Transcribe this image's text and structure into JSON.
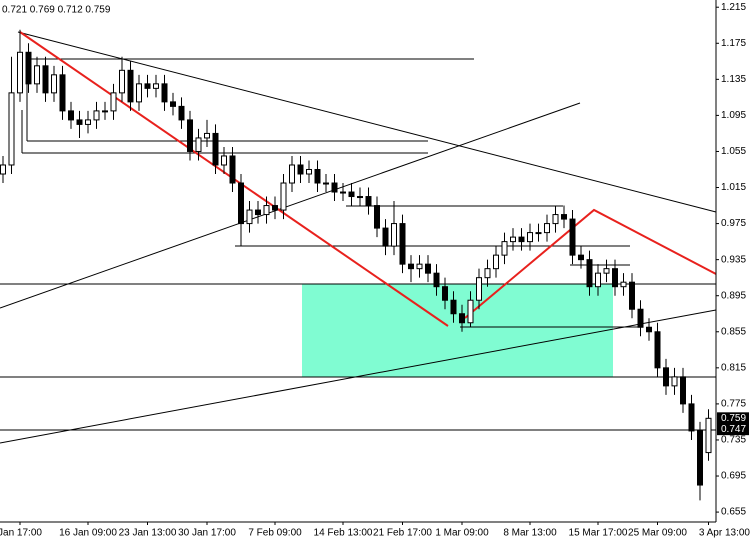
{
  "chart_data": {
    "type": "candlestick",
    "header": "0.721 0.769 0.712 0.759",
    "categories": [
      null,
      null,
      "Jan 17:00",
      null,
      null,
      null,
      null,
      null,
      null,
      null,
      "16 Jan 09:00",
      null,
      null,
      null,
      null,
      null,
      null,
      "23 Jan 13:00",
      null,
      null,
      null,
      null,
      null,
      null,
      "30 Jan 17:00",
      null,
      null,
      null,
      null,
      null,
      null,
      null,
      "7 Feb 09:00",
      null,
      null,
      null,
      null,
      null,
      null,
      null,
      "14 Feb 13:00",
      null,
      null,
      null,
      null,
      null,
      null,
      "21 Feb 17:00",
      null,
      null,
      null,
      null,
      null,
      null,
      "1 Mar 09:00",
      null,
      null,
      null,
      null,
      null,
      null,
      null,
      "8 Mar 13:00",
      null,
      null,
      null,
      null,
      null,
      null,
      null,
      "15 Mar 17:00",
      null,
      null,
      null,
      null,
      null,
      null,
      "25 Mar 09:00",
      null,
      null,
      null,
      null,
      null,
      "3 Apr 13:00"
    ],
    "open": [
      1.03,
      1.04,
      1.12,
      1.165,
      1.13,
      1.15,
      1.12,
      1.14,
      1.1,
      1.09,
      1.085,
      1.09,
      1.1,
      1.1,
      1.12,
      1.145,
      1.11,
      1.13,
      1.125,
      1.13,
      1.11,
      1.105,
      1.09,
      1.055,
      1.07,
      1.075,
      1.04,
      1.05,
      1.02,
      0.975,
      0.99,
      0.985,
      0.995,
      0.99,
      1.02,
      1.04,
      1.03,
      1.035,
      1.02,
      1.02,
      1.01,
      1.01,
      1.005,
      1.005,
      0.995,
      0.97,
      0.95,
      0.975,
      0.93,
      0.925,
      0.93,
      0.92,
      0.905,
      0.89,
      0.875,
      0.865,
      0.89,
      0.915,
      0.925,
      0.94,
      0.955,
      0.96,
      0.955,
      0.965,
      0.965,
      0.975,
      0.985,
      0.98,
      0.94,
      0.935,
      0.905,
      0.92,
      0.925,
      0.905,
      0.91,
      0.88,
      0.86,
      0.855,
      0.815,
      0.795,
      0.805,
      0.775,
      0.745,
      0.721
    ],
    "high": [
      1.05,
      1.16,
      1.19,
      1.175,
      1.16,
      1.16,
      1.15,
      1.15,
      1.11,
      1.1,
      1.1,
      1.11,
      1.11,
      1.13,
      1.16,
      1.155,
      1.14,
      1.14,
      1.14,
      1.14,
      1.12,
      1.115,
      1.1,
      1.08,
      1.09,
      1.085,
      1.06,
      1.06,
      1.03,
      1.0,
      1.0,
      1.005,
      1.005,
      1.03,
      1.05,
      1.05,
      1.045,
      1.045,
      1.03,
      1.03,
      1.02,
      1.02,
      1.015,
      1.015,
      1.005,
      0.98,
      1.0,
      0.985,
      0.94,
      0.94,
      0.94,
      0.93,
      0.915,
      0.9,
      0.885,
      0.9,
      0.925,
      0.935,
      0.95,
      0.965,
      0.97,
      0.97,
      0.975,
      0.975,
      0.985,
      0.995,
      0.995,
      0.99,
      0.95,
      0.945,
      0.93,
      0.935,
      0.935,
      0.92,
      0.92,
      0.89,
      0.87,
      0.865,
      0.825,
      0.815,
      0.815,
      0.785,
      0.755,
      0.769
    ],
    "low": [
      1.02,
      1.03,
      1.11,
      1.12,
      1.12,
      1.11,
      1.11,
      1.09,
      1.08,
      1.07,
      1.075,
      1.08,
      1.09,
      1.09,
      1.11,
      1.1,
      1.1,
      1.115,
      1.115,
      1.1,
      1.095,
      1.08,
      1.045,
      1.045,
      1.06,
      1.03,
      1.03,
      1.01,
      0.95,
      0.965,
      0.975,
      0.975,
      0.98,
      0.98,
      1.01,
      1.02,
      1.02,
      1.01,
      1.01,
      1.0,
      1.0,
      0.995,
      0.995,
      0.985,
      0.96,
      0.94,
      0.94,
      0.92,
      0.91,
      0.915,
      0.91,
      0.895,
      0.88,
      0.865,
      0.855,
      0.86,
      0.88,
      0.905,
      0.915,
      0.93,
      0.945,
      0.945,
      0.945,
      0.955,
      0.955,
      0.965,
      0.97,
      0.93,
      0.925,
      0.895,
      0.895,
      0.91,
      0.895,
      0.895,
      0.87,
      0.85,
      0.845,
      0.805,
      0.785,
      0.785,
      0.765,
      0.735,
      0.668,
      0.712
    ],
    "close": [
      1.04,
      1.12,
      1.165,
      1.13,
      1.15,
      1.12,
      1.14,
      1.1,
      1.09,
      1.085,
      1.09,
      1.1,
      1.1,
      1.12,
      1.145,
      1.11,
      1.13,
      1.125,
      1.13,
      1.11,
      1.105,
      1.09,
      1.055,
      1.07,
      1.075,
      1.04,
      1.05,
      1.02,
      0.975,
      0.99,
      0.985,
      0.995,
      0.99,
      1.02,
      1.04,
      1.03,
      1.035,
      1.02,
      1.02,
      1.01,
      1.01,
      1.005,
      1.005,
      0.995,
      0.97,
      0.95,
      0.975,
      0.93,
      0.925,
      0.93,
      0.92,
      0.905,
      0.89,
      0.875,
      0.865,
      0.89,
      0.915,
      0.925,
      0.94,
      0.955,
      0.96,
      0.955,
      0.965,
      0.965,
      0.975,
      0.985,
      0.98,
      0.94,
      0.935,
      0.905,
      0.92,
      0.925,
      0.905,
      0.91,
      0.88,
      0.86,
      0.855,
      0.815,
      0.795,
      0.805,
      0.775,
      0.745,
      0.685,
      0.759
    ],
    "ylim": [
      0.644,
      1.223
    ],
    "yticks": [
      1.215,
      1.175,
      1.135,
      1.095,
      1.055,
      1.015,
      0.975,
      0.935,
      0.895,
      0.855,
      0.815,
      0.775,
      0.735,
      0.695,
      0.655
    ],
    "markers": [
      0.759,
      0.747
    ],
    "up_color": "#ffffff",
    "down_color": "#000000",
    "grid": false
  }
}
